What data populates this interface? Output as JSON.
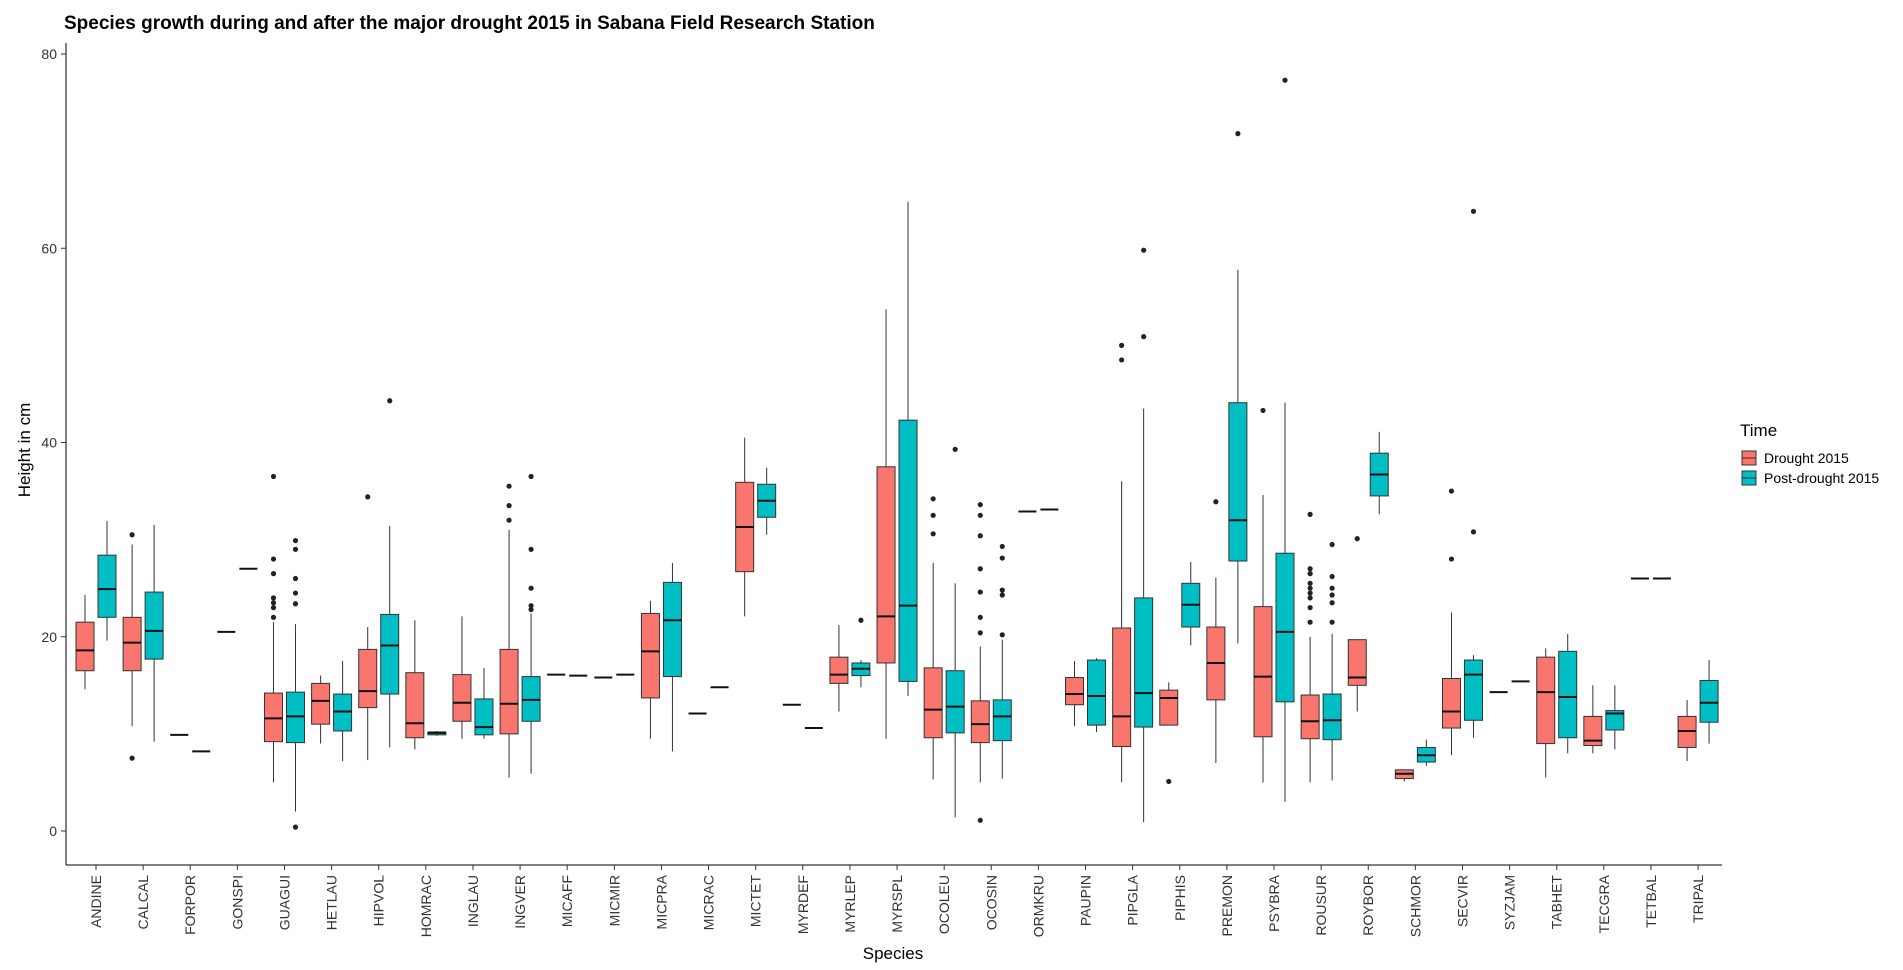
{
  "chart_data": {
    "type": "boxplot",
    "title": "Species growth during and after the major drought 2015 in Sabana Field Research Station",
    "xlabel": "Species",
    "ylabel": "Height in cm",
    "ylim": [
      -3.5,
      81.5
    ],
    "yticks": [
      0,
      20,
      40,
      60,
      80
    ],
    "grid": false,
    "legend": {
      "title": "Time",
      "position": "right",
      "entries": [
        {
          "name": "Drought 2015",
          "color": "#F8766D"
        },
        {
          "name": "Post-drought 2015",
          "color": "#00BFC4"
        }
      ]
    },
    "categories": [
      "ANDINE",
      "CALCAL",
      "FORPOR",
      "GONSPI",
      "GUAGUI",
      "HETLAU",
      "HIPVOL",
      "HOMRAC",
      "INGLAU",
      "INGVER",
      "MICAFF",
      "MICMIR",
      "MICPRA",
      "MICRAC",
      "MICTET",
      "MYRDEF",
      "MYRLEP",
      "MYRSPL",
      "OCOLEU",
      "OCOSIN",
      "ORMKRU",
      "PAUPIN",
      "PIPGLA",
      "PIPHIS",
      "PREMON",
      "PSYBRA",
      "ROUSUR",
      "ROYBOR",
      "SCHMOR",
      "SECVIR",
      "SYZJAM",
      "TABHET",
      "TECGRA",
      "TETBAL",
      "TRIPAL"
    ],
    "series": [
      {
        "name": "Drought 2015",
        "boxes": [
          {
            "cat": "ANDINE",
            "min": 14.6,
            "q1": 16.5,
            "median": 18.6,
            "q3": 21.5,
            "max": 24.3,
            "outliers": []
          },
          {
            "cat": "CALCAL",
            "min": 10.8,
            "q1": 16.5,
            "median": 19.4,
            "q3": 22.0,
            "max": 29.5,
            "outliers": [
              30.5,
              7.5
            ]
          },
          {
            "cat": "FORPOR",
            "min": 9.9,
            "q1": 9.9,
            "median": 9.9,
            "q3": 9.9,
            "max": 9.9,
            "outliers": []
          },
          {
            "cat": "GONSPI",
            "min": 20.5,
            "q1": 20.5,
            "median": 20.5,
            "q3": 20.5,
            "max": 20.5,
            "outliers": []
          },
          {
            "cat": "GUAGUI",
            "min": 5.0,
            "q1": 9.2,
            "median": 11.6,
            "q3": 14.2,
            "max": 21.5,
            "outliers": [
              36.5,
              28.0,
              26.5,
              24.0,
              23.5,
              23.0,
              22.0
            ]
          },
          {
            "cat": "HETLAU",
            "min": 9.0,
            "q1": 11.0,
            "median": 13.4,
            "q3": 15.2,
            "max": 16.0,
            "outliers": []
          },
          {
            "cat": "HIPVOL",
            "min": 7.3,
            "q1": 12.7,
            "median": 14.4,
            "q3": 18.7,
            "max": 21.0,
            "outliers": [
              34.4
            ]
          },
          {
            "cat": "HOMRAC",
            "min": 8.4,
            "q1": 9.6,
            "median": 11.1,
            "q3": 16.3,
            "max": 21.7,
            "outliers": []
          },
          {
            "cat": "INGLAU",
            "min": 9.5,
            "q1": 11.3,
            "median": 13.2,
            "q3": 16.1,
            "max": 22.1,
            "outliers": []
          },
          {
            "cat": "INGVER",
            "min": 5.5,
            "q1": 10.0,
            "median": 13.1,
            "q3": 18.7,
            "max": 31.0,
            "outliers": [
              35.5,
              33.5,
              32.0
            ]
          },
          {
            "cat": "MICAFF",
            "min": 16.1,
            "q1": 16.1,
            "median": 16.1,
            "q3": 16.1,
            "max": 16.1,
            "outliers": []
          },
          {
            "cat": "MICMIR",
            "min": 15.8,
            "q1": 15.8,
            "median": 15.8,
            "q3": 15.8,
            "max": 15.8,
            "outliers": []
          },
          {
            "cat": "MICPRA",
            "min": 9.5,
            "q1": 13.7,
            "median": 18.5,
            "q3": 22.4,
            "max": 23.7,
            "outliers": []
          },
          {
            "cat": "MICRAC",
            "min": 12.1,
            "q1": 12.1,
            "median": 12.1,
            "q3": 12.1,
            "max": 12.1,
            "outliers": []
          },
          {
            "cat": "MICTET",
            "min": 22.1,
            "q1": 26.7,
            "median": 31.3,
            "q3": 35.9,
            "max": 40.5,
            "outliers": []
          },
          {
            "cat": "MYRDEF",
            "min": 13.0,
            "q1": 13.0,
            "median": 13.0,
            "q3": 13.0,
            "max": 13.0,
            "outliers": []
          },
          {
            "cat": "MYRLEP",
            "min": 12.3,
            "q1": 15.2,
            "median": 16.1,
            "q3": 17.9,
            "max": 21.2,
            "outliers": []
          },
          {
            "cat": "MYRSPL",
            "min": 9.5,
            "q1": 17.3,
            "median": 22.1,
            "q3": 37.5,
            "max": 53.7,
            "outliers": []
          },
          {
            "cat": "OCOLEU",
            "min": 5.3,
            "q1": 9.6,
            "median": 12.5,
            "q3": 16.8,
            "max": 27.6,
            "outliers": [
              34.2,
              32.5,
              30.6
            ]
          },
          {
            "cat": "OCOSIN",
            "min": 5.0,
            "q1": 9.1,
            "median": 11.0,
            "q3": 13.4,
            "max": 19.0,
            "outliers": [
              33.6,
              32.5,
              30.4,
              27.0,
              24.6,
              22.0,
              20.4,
              1.1
            ]
          },
          {
            "cat": "ORMKRU",
            "min": 32.9,
            "q1": 32.9,
            "median": 32.9,
            "q3": 32.9,
            "max": 32.9,
            "outliers": []
          },
          {
            "cat": "PAUPIN",
            "min": 10.8,
            "q1": 13.0,
            "median": 14.1,
            "q3": 15.8,
            "max": 17.5,
            "outliers": []
          },
          {
            "cat": "PIPGLA",
            "min": 5.0,
            "q1": 8.7,
            "median": 11.8,
            "q3": 20.9,
            "max": 36.0,
            "outliers": [
              50.0,
              48.5
            ]
          },
          {
            "cat": "PIPHIS",
            "min": 10.9,
            "q1": 10.9,
            "median": 13.7,
            "q3": 14.5,
            "max": 15.3,
            "outliers": [
              5.1
            ]
          },
          {
            "cat": "PREMON",
            "min": 7.0,
            "q1": 13.5,
            "median": 17.3,
            "q3": 21.0,
            "max": 26.1,
            "outliers": [
              33.9
            ]
          },
          {
            "cat": "PSYBRA",
            "min": 5.0,
            "q1": 9.7,
            "median": 15.9,
            "q3": 23.1,
            "max": 34.6,
            "outliers": [
              43.3
            ]
          },
          {
            "cat": "ROUSUR",
            "min": 5.0,
            "q1": 9.5,
            "median": 11.3,
            "q3": 14.0,
            "max": 20.0,
            "outliers": [
              32.6,
              27.0,
              26.5,
              25.5,
              25.0,
              24.5,
              24.0,
              23.0,
              21.5
            ]
          },
          {
            "cat": "ROYBOR",
            "min": 12.3,
            "q1": 15.0,
            "median": 15.8,
            "q3": 19.7,
            "max": 19.7,
            "outliers": [
              30.1
            ]
          },
          {
            "cat": "SCHMOR",
            "min": 5.1,
            "q1": 5.4,
            "median": 5.9,
            "q3": 6.3,
            "max": 6.3,
            "outliers": []
          },
          {
            "cat": "SECVIR",
            "min": 7.8,
            "q1": 10.6,
            "median": 12.3,
            "q3": 15.7,
            "max": 22.5,
            "outliers": [
              35.0,
              28.0
            ]
          },
          {
            "cat": "SYZJAM",
            "min": 14.3,
            "q1": 14.3,
            "median": 14.3,
            "q3": 14.3,
            "max": 14.3,
            "outliers": []
          },
          {
            "cat": "TABHET",
            "min": 5.5,
            "q1": 9.0,
            "median": 14.3,
            "q3": 17.9,
            "max": 18.8,
            "outliers": []
          },
          {
            "cat": "TECGRA",
            "min": 8.0,
            "q1": 8.8,
            "median": 9.3,
            "q3": 11.8,
            "max": 15.0,
            "outliers": []
          },
          {
            "cat": "TETBAL",
            "min": 26.0,
            "q1": 26.0,
            "median": 26.0,
            "q3": 26.0,
            "max": 26.0,
            "outliers": []
          },
          {
            "cat": "TRIPAL",
            "min": 7.2,
            "q1": 8.6,
            "median": 10.3,
            "q3": 11.8,
            "max": 13.5,
            "outliers": []
          }
        ]
      },
      {
        "name": "Post-drought 2015",
        "boxes": [
          {
            "cat": "ANDINE",
            "min": 19.6,
            "q1": 22.0,
            "median": 24.9,
            "q3": 28.4,
            "max": 31.9,
            "outliers": []
          },
          {
            "cat": "CALCAL",
            "min": 9.2,
            "q1": 17.7,
            "median": 20.6,
            "q3": 24.6,
            "max": 31.5,
            "outliers": []
          },
          {
            "cat": "FORPOR",
            "min": 8.2,
            "q1": 8.2,
            "median": 8.2,
            "q3": 8.2,
            "max": 8.2,
            "outliers": []
          },
          {
            "cat": "GONSPI",
            "min": 27.0,
            "q1": 27.0,
            "median": 27.0,
            "q3": 27.0,
            "max": 27.0,
            "outliers": []
          },
          {
            "cat": "GUAGUI",
            "min": 2.0,
            "q1": 9.1,
            "median": 11.8,
            "q3": 14.3,
            "max": 21.3,
            "outliers": [
              29.9,
              29.0,
              26.0,
              24.5,
              23.4,
              0.4
            ]
          },
          {
            "cat": "HETLAU",
            "min": 7.2,
            "q1": 10.3,
            "median": 12.3,
            "q3": 14.1,
            "max": 17.5,
            "outliers": []
          },
          {
            "cat": "HIPVOL",
            "min": 8.6,
            "q1": 14.1,
            "median": 19.1,
            "q3": 22.3,
            "max": 31.4,
            "outliers": [
              44.3
            ]
          },
          {
            "cat": "HOMRAC",
            "min": 9.8,
            "q1": 9.9,
            "median": 10.1,
            "q3": 10.2,
            "max": 10.3,
            "outliers": []
          },
          {
            "cat": "INGLAU",
            "min": 9.5,
            "q1": 9.9,
            "median": 10.7,
            "q3": 13.6,
            "max": 16.8,
            "outliers": []
          },
          {
            "cat": "INGVER",
            "min": 5.9,
            "q1": 11.3,
            "median": 13.5,
            "q3": 15.9,
            "max": 22.4,
            "outliers": [
              36.5,
              29.0,
              25.0,
              23.2,
              22.8
            ]
          },
          {
            "cat": "MICAFF",
            "min": 16.0,
            "q1": 16.0,
            "median": 16.0,
            "q3": 16.0,
            "max": 16.0,
            "outliers": []
          },
          {
            "cat": "MICMIR",
            "min": 16.1,
            "q1": 16.1,
            "median": 16.1,
            "q3": 16.1,
            "max": 16.1,
            "outliers": []
          },
          {
            "cat": "MICPRA",
            "min": 8.2,
            "q1": 15.9,
            "median": 21.7,
            "q3": 25.6,
            "max": 27.6,
            "outliers": []
          },
          {
            "cat": "MICRAC",
            "min": 14.8,
            "q1": 14.8,
            "median": 14.8,
            "q3": 14.8,
            "max": 14.8,
            "outliers": []
          },
          {
            "cat": "MICTET",
            "min": 30.5,
            "q1": 32.3,
            "median": 34.0,
            "q3": 35.7,
            "max": 37.4,
            "outliers": []
          },
          {
            "cat": "MYRDEF",
            "min": 10.6,
            "q1": 10.6,
            "median": 10.6,
            "q3": 10.6,
            "max": 10.6,
            "outliers": []
          },
          {
            "cat": "MYRLEP",
            "min": 14.8,
            "q1": 16.0,
            "median": 16.7,
            "q3": 17.3,
            "max": 17.6,
            "outliers": [
              21.7
            ]
          },
          {
            "cat": "MYRSPL",
            "min": 13.9,
            "q1": 15.4,
            "median": 23.2,
            "q3": 42.3,
            "max": 64.8,
            "outliers": []
          },
          {
            "cat": "OCOLEU",
            "min": 1.4,
            "q1": 10.1,
            "median": 12.8,
            "q3": 16.5,
            "max": 25.5,
            "outliers": [
              39.3
            ]
          },
          {
            "cat": "OCOSIN",
            "min": 5.4,
            "q1": 9.3,
            "median": 11.8,
            "q3": 13.5,
            "max": 19.7,
            "outliers": [
              29.3,
              28.1,
              24.8,
              24.3,
              20.2
            ]
          },
          {
            "cat": "ORMKRU",
            "min": 33.1,
            "q1": 33.1,
            "median": 33.1,
            "q3": 33.1,
            "max": 33.1,
            "outliers": []
          },
          {
            "cat": "PAUPIN",
            "min": 10.2,
            "q1": 10.9,
            "median": 13.9,
            "q3": 17.6,
            "max": 17.8,
            "outliers": []
          },
          {
            "cat": "PIPGLA",
            "min": 0.9,
            "q1": 10.7,
            "median": 14.2,
            "q3": 24.0,
            "max": 43.5,
            "outliers": [
              59.8,
              50.9
            ]
          },
          {
            "cat": "PIPHIS",
            "min": 19.1,
            "q1": 21.0,
            "median": 23.3,
            "q3": 25.5,
            "max": 27.7,
            "outliers": []
          },
          {
            "cat": "PREMON",
            "min": 19.3,
            "q1": 27.8,
            "median": 32.0,
            "q3": 44.1,
            "max": 57.8,
            "outliers": [
              71.8
            ]
          },
          {
            "cat": "PSYBRA",
            "min": 3.0,
            "q1": 13.3,
            "median": 20.5,
            "q3": 28.6,
            "max": 44.1,
            "outliers": [
              77.3
            ]
          },
          {
            "cat": "ROUSUR",
            "min": 5.2,
            "q1": 9.4,
            "median": 11.4,
            "q3": 14.1,
            "max": 20.3,
            "outliers": [
              29.5,
              26.2,
              25.0,
              24.3,
              23.5,
              21.5
            ]
          },
          {
            "cat": "ROYBOR",
            "min": 32.6,
            "q1": 34.5,
            "median": 36.7,
            "q3": 38.9,
            "max": 41.1,
            "outliers": []
          },
          {
            "cat": "SCHMOR",
            "min": 6.7,
            "q1": 7.1,
            "median": 7.8,
            "q3": 8.6,
            "max": 9.4,
            "outliers": []
          },
          {
            "cat": "SECVIR",
            "min": 9.6,
            "q1": 11.4,
            "median": 16.1,
            "q3": 17.6,
            "max": 18.1,
            "outliers": [
              63.8,
              30.8
            ]
          },
          {
            "cat": "SYZJAM",
            "min": 15.4,
            "q1": 15.4,
            "median": 15.4,
            "q3": 15.4,
            "max": 15.4,
            "outliers": []
          },
          {
            "cat": "TABHET",
            "min": 8.0,
            "q1": 9.6,
            "median": 13.8,
            "q3": 18.5,
            "max": 20.3,
            "outliers": []
          },
          {
            "cat": "TECGRA",
            "min": 8.4,
            "q1": 10.4,
            "median": 12.1,
            "q3": 12.4,
            "max": 15.0,
            "outliers": []
          },
          {
            "cat": "TETBAL",
            "min": 26.0,
            "q1": 26.0,
            "median": 26.0,
            "q3": 26.0,
            "max": 26.0,
            "outliers": []
          },
          {
            "cat": "TRIPAL",
            "min": 9.0,
            "q1": 11.2,
            "median": 13.2,
            "q3": 15.5,
            "max": 17.6,
            "outliers": []
          }
        ]
      }
    ]
  }
}
